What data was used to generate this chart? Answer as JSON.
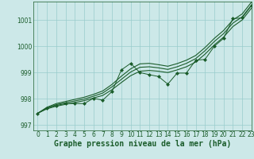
{
  "title": "Graphe pression niveau de la mer (hPa)",
  "background_color": "#cce8e8",
  "grid_color": "#99cccc",
  "line_color": "#1a5c2a",
  "xlim": [
    -0.5,
    23
  ],
  "ylim": [
    996.8,
    1001.7
  ],
  "yticks": [
    997,
    998,
    999,
    1000,
    1001
  ],
  "xticks": [
    0,
    1,
    2,
    3,
    4,
    5,
    6,
    7,
    8,
    9,
    10,
    11,
    12,
    13,
    14,
    15,
    16,
    17,
    18,
    19,
    20,
    21,
    22,
    23
  ],
  "smooth1": [
    997.45,
    997.62,
    997.72,
    997.79,
    997.86,
    997.93,
    998.03,
    998.13,
    998.35,
    998.62,
    998.88,
    999.05,
    999.08,
    999.05,
    999.0,
    999.1,
    999.22,
    999.4,
    999.7,
    1000.05,
    1000.35,
    1000.75,
    1001.0,
    1001.45
  ],
  "smooth2": [
    997.45,
    997.65,
    997.78,
    997.85,
    997.92,
    997.99,
    998.1,
    998.22,
    998.46,
    998.74,
    999.02,
    999.2,
    999.22,
    999.18,
    999.12,
    999.22,
    999.35,
    999.53,
    999.83,
    1000.18,
    1000.48,
    1000.88,
    1001.12,
    1001.57
  ],
  "smooth3": [
    997.45,
    997.68,
    997.82,
    997.9,
    997.98,
    998.06,
    998.17,
    998.3,
    998.55,
    998.86,
    999.14,
    999.33,
    999.35,
    999.3,
    999.24,
    999.34,
    999.47,
    999.65,
    999.95,
    1000.3,
    1000.6,
    1001.0,
    1001.23,
    1001.68
  ],
  "jagged": [
    997.45,
    997.65,
    997.75,
    997.82,
    997.82,
    997.82,
    998.02,
    997.95,
    998.28,
    999.1,
    999.35,
    999.0,
    998.92,
    998.85,
    998.56,
    998.98,
    998.98,
    999.47,
    999.5,
    1000.0,
    1000.3,
    1001.05,
    1001.08,
    1001.55
  ],
  "title_fontsize": 7,
  "tick_fontsize": 5.5
}
